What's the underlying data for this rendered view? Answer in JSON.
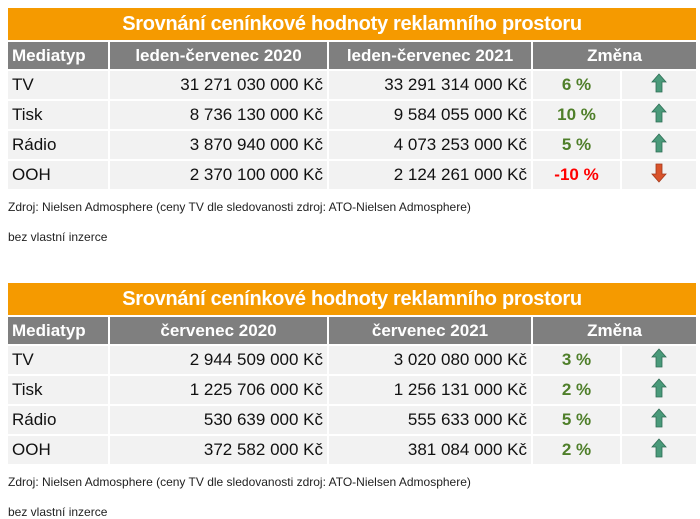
{
  "tables": [
    {
      "title": "Srovnání cenínkové hodnoty reklamního prostoru",
      "headers": [
        "Mediatyp",
        "leden-červenec 2020",
        "leden-červenec 2021",
        "Změna"
      ],
      "rows": [
        {
          "media": "TV",
          "v2020": "31 271 030 000 Kč",
          "v2021": "33 291 314 000 Kč",
          "change": "6 %",
          "trend": "up"
        },
        {
          "media": "Tisk",
          "v2020": "8 736 130 000 Kč",
          "v2021": "9 584 055 000 Kč",
          "change": "10 %",
          "trend": "up"
        },
        {
          "media": "Rádio",
          "v2020": "3 870 940 000 Kč",
          "v2021": "4 073 253 000 Kč",
          "change": "5 %",
          "trend": "up"
        },
        {
          "media": "OOH",
          "v2020": "2 370 100 000 Kč",
          "v2021": "2 124 261 000 Kč",
          "change": "-10 %",
          "trend": "down"
        }
      ],
      "source": "Zdroj: Nielsen Admosphere (ceny TV dle sledovanosti zdroj: ATO-Nielsen Admosphere)",
      "note": "bez vlastní inzerce"
    },
    {
      "title": "Srovnání cenínkové hodnoty reklamního prostoru",
      "headers": [
        "Mediatyp",
        "červenec 2020",
        "červenec 2021",
        "Změna"
      ],
      "rows": [
        {
          "media": "TV",
          "v2020": "2 944 509 000 Kč",
          "v2021": "3 020 080 000 Kč",
          "change": "3 %",
          "trend": "up"
        },
        {
          "media": "Tisk",
          "v2020": "1 225 706 000 Kč",
          "v2021": "1 256 131 000 Kč",
          "change": "2 %",
          "trend": "up"
        },
        {
          "media": "Rádio",
          "v2020": "530 639 000 Kč",
          "v2021": "555 633 000 Kč",
          "change": "5 %",
          "trend": "up"
        },
        {
          "media": "OOH",
          "v2020": "372 582 000 Kč",
          "v2021": "381 084 000 Kč",
          "change": "2 %",
          "trend": "up"
        }
      ],
      "source": "Zdroj: Nielsen Admosphere (ceny TV dle sledovanosti zdroj: ATO-Nielsen Admosphere)",
      "note": "bez vlastní inzerce"
    }
  ],
  "colors": {
    "title_bg": "#f59a00",
    "header_bg": "#7f7f7f",
    "cell_bg": "#f2f2f2",
    "positive": "#4f7f2a",
    "negative": "#ff0000",
    "arrow_up": "#4a9a7a",
    "arrow_down": "#d9532b"
  }
}
